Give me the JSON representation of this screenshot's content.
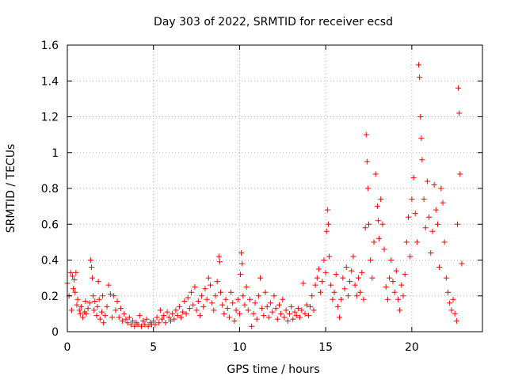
{
  "chart_data": {
    "type": "scatter",
    "title": "Day 303 of 2022, SRMTID for receiver ecsd",
    "xlabel": "GPS time / hours",
    "ylabel": "SRMTID / TECUs",
    "xlim": [
      0,
      24.1
    ],
    "ylim": [
      0,
      1.6
    ],
    "x_ticks": [
      0,
      5,
      10,
      15,
      20
    ],
    "y_ticks": [
      0,
      0.2,
      0.4,
      0.6,
      0.8,
      1,
      1.2,
      1.4,
      1.6
    ],
    "x_tick_labels": [
      "0",
      "5",
      "10",
      "15",
      "20"
    ],
    "y_tick_labels": [
      "0",
      "0.2",
      "0.4",
      "0.6",
      "0.8",
      "1",
      "1.2",
      "1.4",
      "1.6"
    ],
    "grid": true,
    "marker": "+",
    "color": "#ff0000",
    "series": [
      {
        "name": "SRMTID",
        "points": [
          [
            0.0,
            0.27
          ],
          [
            0.1,
            0.2
          ],
          [
            0.2,
            0.33
          ],
          [
            0.25,
            0.12
          ],
          [
            0.3,
            0.31
          ],
          [
            0.35,
            0.24
          ],
          [
            0.4,
            0.29
          ],
          [
            0.45,
            0.22
          ],
          [
            0.5,
            0.33
          ],
          [
            0.55,
            0.15
          ],
          [
            0.6,
            0.18
          ],
          [
            0.7,
            0.12
          ],
          [
            0.75,
            0.1
          ],
          [
            0.8,
            0.14
          ],
          [
            0.9,
            0.08
          ],
          [
            1.0,
            0.11
          ],
          [
            1.05,
            0.17
          ],
          [
            1.1,
            0.1
          ],
          [
            1.2,
            0.13
          ],
          [
            1.3,
            0.16
          ],
          [
            1.35,
            0.4
          ],
          [
            1.4,
            0.36
          ],
          [
            1.45,
            0.3
          ],
          [
            1.5,
            0.2
          ],
          [
            1.55,
            0.12
          ],
          [
            1.6,
            0.17
          ],
          [
            1.7,
            0.09
          ],
          [
            1.75,
            0.14
          ],
          [
            1.8,
            0.28
          ],
          [
            1.85,
            0.18
          ],
          [
            1.9,
            0.07
          ],
          [
            2.0,
            0.11
          ],
          [
            2.05,
            0.2
          ],
          [
            2.1,
            0.05
          ],
          [
            2.2,
            0.09
          ],
          [
            2.3,
            0.14
          ],
          [
            2.4,
            0.26
          ],
          [
            2.5,
            0.21
          ],
          [
            2.6,
            0.08
          ],
          [
            2.7,
            0.2
          ],
          [
            2.8,
            0.12
          ],
          [
            2.9,
            0.17
          ],
          [
            3.0,
            0.08
          ],
          [
            3.1,
            0.13
          ],
          [
            3.2,
            0.06
          ],
          [
            3.3,
            0.1
          ],
          [
            3.4,
            0.07
          ],
          [
            3.5,
            0.05
          ],
          [
            3.6,
            0.08
          ],
          [
            3.7,
            0.04
          ],
          [
            3.8,
            0.06
          ],
          [
            3.9,
            0.03
          ],
          [
            4.0,
            0.05
          ],
          [
            4.1,
            0.04
          ],
          [
            4.2,
            0.09
          ],
          [
            4.3,
            0.03
          ],
          [
            4.4,
            0.06
          ],
          [
            4.5,
            0.04
          ],
          [
            4.6,
            0.07
          ],
          [
            4.7,
            0.03
          ],
          [
            4.8,
            0.05
          ],
          [
            4.9,
            0.04
          ],
          [
            5.0,
            0.06
          ],
          [
            5.1,
            0.04
          ],
          [
            5.2,
            0.08
          ],
          [
            5.3,
            0.05
          ],
          [
            5.4,
            0.12
          ],
          [
            5.5,
            0.07
          ],
          [
            5.6,
            0.09
          ],
          [
            5.7,
            0.05
          ],
          [
            5.8,
            0.11
          ],
          [
            5.9,
            0.08
          ],
          [
            6.0,
            0.06
          ],
          [
            6.1,
            0.1
          ],
          [
            6.2,
            0.07
          ],
          [
            6.3,
            0.12
          ],
          [
            6.4,
            0.09
          ],
          [
            6.5,
            0.14
          ],
          [
            6.6,
            0.08
          ],
          [
            6.7,
            0.11
          ],
          [
            6.8,
            0.17
          ],
          [
            6.9,
            0.1
          ],
          [
            7.0,
            0.19
          ],
          [
            7.1,
            0.13
          ],
          [
            7.2,
            0.22
          ],
          [
            7.3,
            0.15
          ],
          [
            7.4,
            0.25
          ],
          [
            7.5,
            0.12
          ],
          [
            7.6,
            0.17
          ],
          [
            7.7,
            0.09
          ],
          [
            7.8,
            0.2
          ],
          [
            7.9,
            0.14
          ],
          [
            8.0,
            0.24
          ],
          [
            8.1,
            0.18
          ],
          [
            8.2,
            0.3
          ],
          [
            8.3,
            0.26
          ],
          [
            8.4,
            0.16
          ],
          [
            8.5,
            0.12
          ],
          [
            8.6,
            0.2
          ],
          [
            8.7,
            0.28
          ],
          [
            8.8,
            0.42
          ],
          [
            8.85,
            0.39
          ],
          [
            8.9,
            0.22
          ],
          [
            9.0,
            0.15
          ],
          [
            9.1,
            0.1
          ],
          [
            9.2,
            0.18
          ],
          [
            9.3,
            0.13
          ],
          [
            9.4,
            0.08
          ],
          [
            9.5,
            0.22
          ],
          [
            9.6,
            0.16
          ],
          [
            9.7,
            0.06
          ],
          [
            9.8,
            0.12
          ],
          [
            9.9,
            0.18
          ],
          [
            10.0,
            0.1
          ],
          [
            10.05,
            0.32
          ],
          [
            10.1,
            0.44
          ],
          [
            10.15,
            0.38
          ],
          [
            10.2,
            0.2
          ],
          [
            10.3,
            0.15
          ],
          [
            10.4,
            0.25
          ],
          [
            10.5,
            0.12
          ],
          [
            10.6,
            0.18
          ],
          [
            10.7,
            0.03
          ],
          [
            10.8,
            0.1
          ],
          [
            10.9,
            0.16
          ],
          [
            11.0,
            0.07
          ],
          [
            11.1,
            0.2
          ],
          [
            11.2,
            0.3
          ],
          [
            11.3,
            0.13
          ],
          [
            11.4,
            0.09
          ],
          [
            11.5,
            0.22
          ],
          [
            11.6,
            0.14
          ],
          [
            11.7,
            0.08
          ],
          [
            11.8,
            0.16
          ],
          [
            11.9,
            0.11
          ],
          [
            12.0,
            0.2
          ],
          [
            12.1,
            0.13
          ],
          [
            12.2,
            0.07
          ],
          [
            12.3,
            0.15
          ],
          [
            12.4,
            0.1
          ],
          [
            12.5,
            0.18
          ],
          [
            12.6,
            0.08
          ],
          [
            12.7,
            0.12
          ],
          [
            12.8,
            0.06
          ],
          [
            12.9,
            0.1
          ],
          [
            13.0,
            0.14
          ],
          [
            13.1,
            0.07
          ],
          [
            13.2,
            0.11
          ],
          [
            13.3,
            0.09
          ],
          [
            13.4,
            0.13
          ],
          [
            13.5,
            0.08
          ],
          [
            13.6,
            0.12
          ],
          [
            13.7,
            0.27
          ],
          [
            13.8,
            0.1
          ],
          [
            13.9,
            0.15
          ],
          [
            14.0,
            0.09
          ],
          [
            14.1,
            0.14
          ],
          [
            14.2,
            0.2
          ],
          [
            14.3,
            0.12
          ],
          [
            14.4,
            0.26
          ],
          [
            14.5,
            0.3
          ],
          [
            14.6,
            0.35
          ],
          [
            14.7,
            0.22
          ],
          [
            14.8,
            0.28
          ],
          [
            14.9,
            0.4
          ],
          [
            15.0,
            0.33
          ],
          [
            15.05,
            0.56
          ],
          [
            15.1,
            0.68
          ],
          [
            15.15,
            0.6
          ],
          [
            15.2,
            0.42
          ],
          [
            15.3,
            0.26
          ],
          [
            15.4,
            0.18
          ],
          [
            15.5,
            0.22
          ],
          [
            15.6,
            0.32
          ],
          [
            15.7,
            0.14
          ],
          [
            15.8,
            0.08
          ],
          [
            15.9,
            0.18
          ],
          [
            16.0,
            0.3
          ],
          [
            16.1,
            0.24
          ],
          [
            16.2,
            0.36
          ],
          [
            16.3,
            0.2
          ],
          [
            16.4,
            0.28
          ],
          [
            16.5,
            0.34
          ],
          [
            16.6,
            0.42
          ],
          [
            16.7,
            0.26
          ],
          [
            16.8,
            0.2
          ],
          [
            16.9,
            0.3
          ],
          [
            17.0,
            0.22
          ],
          [
            17.1,
            0.33
          ],
          [
            17.2,
            0.18
          ],
          [
            17.3,
            0.58
          ],
          [
            17.35,
            1.1
          ],
          [
            17.4,
            0.95
          ],
          [
            17.45,
            0.8
          ],
          [
            17.5,
            0.6
          ],
          [
            17.6,
            0.4
          ],
          [
            17.7,
            0.3
          ],
          [
            17.8,
            0.5
          ],
          [
            17.9,
            0.88
          ],
          [
            18.0,
            0.7
          ],
          [
            18.05,
            0.62
          ],
          [
            18.1,
            0.52
          ],
          [
            18.2,
            0.74
          ],
          [
            18.3,
            0.6
          ],
          [
            18.4,
            0.46
          ],
          [
            18.5,
            0.25
          ],
          [
            18.6,
            0.18
          ],
          [
            18.7,
            0.3
          ],
          [
            18.8,
            0.4
          ],
          [
            18.9,
            0.28
          ],
          [
            19.0,
            0.22
          ],
          [
            19.1,
            0.34
          ],
          [
            19.2,
            0.18
          ],
          [
            19.3,
            0.12
          ],
          [
            19.4,
            0.26
          ],
          [
            19.5,
            0.2
          ],
          [
            19.6,
            0.32
          ],
          [
            19.7,
            0.5
          ],
          [
            19.8,
            0.64
          ],
          [
            19.9,
            0.42
          ],
          [
            20.0,
            0.74
          ],
          [
            20.1,
            0.86
          ],
          [
            20.2,
            0.66
          ],
          [
            20.3,
            0.5
          ],
          [
            20.4,
            1.49
          ],
          [
            20.45,
            1.42
          ],
          [
            20.5,
            1.2
          ],
          [
            20.55,
            1.08
          ],
          [
            20.6,
            0.96
          ],
          [
            20.7,
            0.74
          ],
          [
            20.8,
            0.58
          ],
          [
            20.9,
            0.84
          ],
          [
            21.0,
            0.64
          ],
          [
            21.1,
            0.44
          ],
          [
            21.2,
            0.56
          ],
          [
            21.3,
            0.82
          ],
          [
            21.4,
            0.68
          ],
          [
            21.5,
            0.6
          ],
          [
            21.6,
            0.36
          ],
          [
            21.7,
            0.8
          ],
          [
            21.8,
            0.72
          ],
          [
            21.9,
            0.5
          ],
          [
            22.0,
            0.3
          ],
          [
            22.1,
            0.22
          ],
          [
            22.2,
            0.16
          ],
          [
            22.3,
            0.12
          ],
          [
            22.4,
            0.18
          ],
          [
            22.5,
            0.1
          ],
          [
            22.6,
            0.06
          ],
          [
            22.65,
            0.6
          ],
          [
            22.7,
            1.36
          ],
          [
            22.75,
            1.22
          ],
          [
            22.8,
            0.88
          ],
          [
            22.9,
            0.38
          ]
        ]
      }
    ]
  }
}
